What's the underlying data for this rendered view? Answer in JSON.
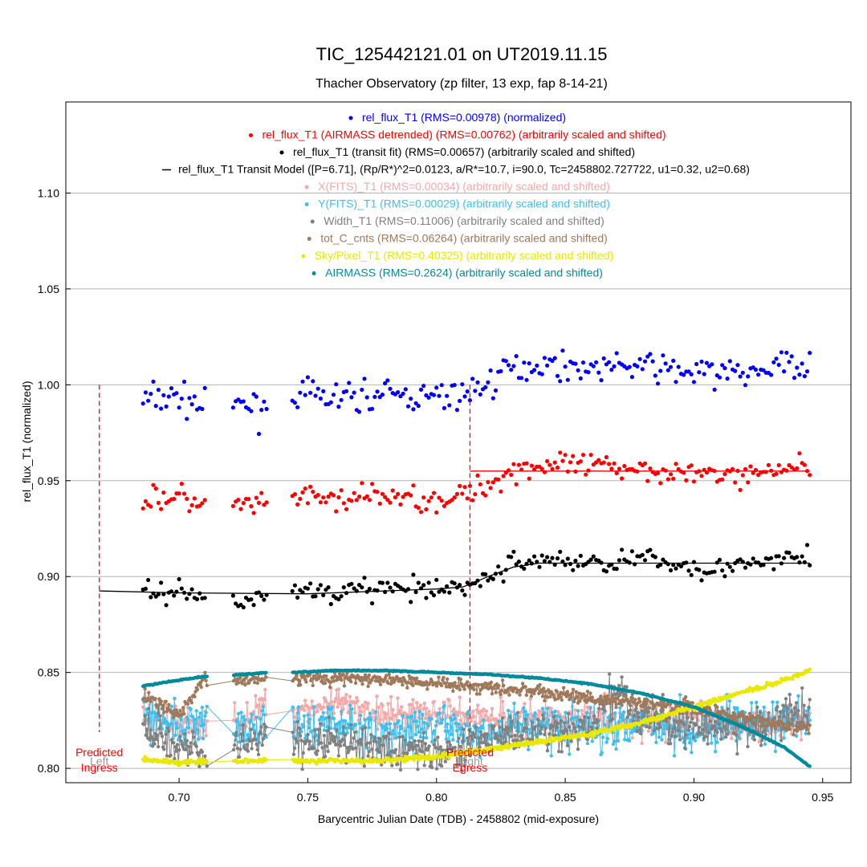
{
  "chart_data": {
    "type": "scatter",
    "title": "TIC_125442121.01 on UT2019.11.15",
    "subtitle": "Thacher Observatory (zp filter, 13 exp, fap 8-14-21)",
    "xlabel": "Barycentric Julian Date (TDB) - 2458802 (mid-exposure)",
    "ylabel": "rel_flux_T1 (normalized)",
    "xlim": [
      0.656,
      0.961
    ],
    "ylim": [
      0.7925,
      1.1475
    ],
    "xticks": [
      "0.70",
      "0.75",
      "0.80",
      "0.85",
      "0.90",
      "0.95"
    ],
    "yticks": [
      "0.80",
      "0.85",
      "0.90",
      "0.95",
      "1.00",
      "1.05",
      "1.10"
    ],
    "grid": "horizontal",
    "legend_position": "top-center",
    "x_gaps": [
      [
        0.711,
        0.721
      ],
      [
        0.734,
        0.744
      ]
    ],
    "legend": [
      {
        "text": "rel_flux_T1 (RMS=0.00978) (normalized)",
        "color": "#0000ff",
        "symbol": "dot"
      },
      {
        "text": "rel_flux_T1 (AIRMASS detrended) (RMS=0.00762) (arbitrarily scaled and shifted)",
        "color": "#ff0000",
        "symbol": "dot"
      },
      {
        "text": "rel_flux_T1 (transit fit) (RMS=0.00657) (arbitrarily scaled and shifted)",
        "color": "#000000",
        "symbol": "dot"
      },
      {
        "text": "rel_flux_T1 Transit Model ([P=6.71], (Rp/R*)^2=0.0123, a/R*=10.7, i=90.0, Tc=2458802.727722, u1=0.32, u2=0.68)",
        "color": "#000000",
        "symbol": "line"
      },
      {
        "text": "X(FITS)_T1 (RMS=0.00034) (arbitrarily scaled and shifted)",
        "color": "#f4a8a8",
        "symbol": "dot"
      },
      {
        "text": "Y(FITS)_T1 (RMS=0.00029) (arbitrarily scaled and shifted)",
        "color": "#3ec0ee",
        "symbol": "dot"
      },
      {
        "text": "Width_T1 (RMS=0.11006) (arbitrarily scaled and shifted)",
        "color": "#808080",
        "symbol": "dot"
      },
      {
        "text": "tot_C_cnts (RMS=0.06264) (arbitrarily scaled and shifted)",
        "color": "#a0785a",
        "symbol": "dot"
      },
      {
        "text": "Sky/Pixel_T1 (RMS=0.40325) (arbitrarily scaled and shifted)",
        "color": "#e8e800",
        "symbol": "dot"
      },
      {
        "text": "AIRMASS (RMS=0.2624) (arbitrarily scaled and shifted)",
        "color": "#008b9b",
        "symbol": "dot"
      }
    ],
    "series": [
      {
        "name": "rel_flux_T1 (RMS=0.00978) (normalized)",
        "color": "#0000ff",
        "kind": "points",
        "x": [
          0.686,
          0.7,
          0.71,
          0.726,
          0.734,
          0.745,
          0.76,
          0.78,
          0.8,
          0.813,
          0.82,
          0.83,
          0.84,
          0.86,
          0.88,
          0.9,
          0.92,
          0.935,
          0.945
        ],
        "y": [
          0.992,
          0.994,
          0.988,
          0.989,
          0.988,
          0.995,
          0.993,
          0.995,
          0.993,
          0.996,
          1.001,
          1.009,
          1.011,
          1.009,
          1.01,
          1.006,
          1.006,
          1.01,
          1.012
        ]
      },
      {
        "name": "rel_flux_T1 (AIRMASS detrended) (RMS=0.00762) (arbitrarily scaled and shifted)",
        "color": "#ff0000",
        "kind": "points",
        "x": [
          0.686,
          0.7,
          0.71,
          0.726,
          0.734,
          0.745,
          0.76,
          0.78,
          0.8,
          0.813,
          0.82,
          0.83,
          0.84,
          0.86,
          0.88,
          0.9,
          0.92,
          0.935,
          0.945
        ],
        "y": [
          0.94,
          0.942,
          0.936,
          0.937,
          0.936,
          0.942,
          0.94,
          0.942,
          0.94,
          0.943,
          0.948,
          0.956,
          0.958,
          0.957,
          0.957,
          0.953,
          0.953,
          0.957,
          0.959
        ]
      },
      {
        "name": "rel_flux_T1 Airmass model",
        "color": "#ff0000",
        "kind": "line",
        "x": [
          0.813,
          0.945
        ],
        "y": [
          0.955,
          0.955
        ]
      },
      {
        "name": "rel_flux_T1 (transit fit) (RMS=0.00657) (arbitrarily scaled and shifted)",
        "color": "#000000",
        "kind": "points",
        "x": [
          0.686,
          0.7,
          0.71,
          0.726,
          0.734,
          0.745,
          0.76,
          0.78,
          0.8,
          0.813,
          0.82,
          0.83,
          0.84,
          0.86,
          0.88,
          0.9,
          0.92,
          0.935,
          0.945
        ],
        "y": [
          0.891,
          0.893,
          0.888,
          0.889,
          0.888,
          0.894,
          0.892,
          0.894,
          0.892,
          0.896,
          0.899,
          0.907,
          0.909,
          0.907,
          0.909,
          0.905,
          0.905,
          0.909,
          0.911
        ]
      },
      {
        "name": "rel_flux_T1 Transit Model ([P=6.71], (Rp/R*)^2=0.0123, a/R*=10.7, i=90.0, Tc=2458802.727722, u1=0.32, u2=0.68)",
        "color": "#000000",
        "kind": "line",
        "x": [
          0.669,
          0.7,
          0.75,
          0.8,
          0.81,
          0.813,
          0.82,
          0.83,
          0.84,
          0.86,
          0.9,
          0.945
        ],
        "y": [
          0.8925,
          0.8915,
          0.891,
          0.8935,
          0.8945,
          0.896,
          0.9,
          0.905,
          0.907,
          0.907,
          0.907,
          0.907
        ]
      },
      {
        "name": "X(FITS)_T1 (RMS=0.00034) (arbitrarily scaled and shifted)",
        "color": "#f4a8a8",
        "kind": "points",
        "x": [
          0.686,
          0.7,
          0.71,
          0.726,
          0.734,
          0.745,
          0.76,
          0.78,
          0.8,
          0.82,
          0.84,
          0.86,
          0.88,
          0.9,
          0.92,
          0.945
        ],
        "y": [
          0.826,
          0.824,
          0.822,
          0.826,
          0.834,
          0.83,
          0.833,
          0.828,
          0.829,
          0.827,
          0.826,
          0.828,
          0.823,
          0.826,
          0.822,
          0.826
        ]
      },
      {
        "name": "Y(FITS)_T1 (RMS=0.00029) (arbitrarily scaled and shifted)",
        "color": "#3ec0ee",
        "kind": "points",
        "x": [
          0.686,
          0.7,
          0.71,
          0.726,
          0.734,
          0.745,
          0.76,
          0.78,
          0.8,
          0.82,
          0.84,
          0.86,
          0.88,
          0.9,
          0.92,
          0.945
        ],
        "y": [
          0.832,
          0.82,
          0.826,
          0.818,
          0.822,
          0.82,
          0.824,
          0.817,
          0.822,
          0.818,
          0.824,
          0.82,
          0.826,
          0.82,
          0.824,
          0.824
        ]
      },
      {
        "name": "Width_T1 (RMS=0.11006) (arbitrarily scaled and shifted)",
        "color": "#808080",
        "kind": "points",
        "x": [
          0.686,
          0.7,
          0.71,
          0.726,
          0.734,
          0.745,
          0.76,
          0.78,
          0.8,
          0.82,
          0.84,
          0.86,
          0.87,
          0.88,
          0.9,
          0.92,
          0.945
        ],
        "y": [
          0.822,
          0.812,
          0.81,
          0.812,
          0.818,
          0.812,
          0.814,
          0.81,
          0.808,
          0.816,
          0.818,
          0.82,
          0.842,
          0.826,
          0.822,
          0.82,
          0.83
        ]
      },
      {
        "name": "tot_C_cnts (RMS=0.06264) (arbitrarily scaled and shifted)",
        "color": "#a0785a",
        "kind": "points",
        "x": [
          0.686,
          0.7,
          0.71,
          0.726,
          0.734,
          0.745,
          0.76,
          0.78,
          0.8,
          0.82,
          0.84,
          0.86,
          0.88,
          0.9,
          0.92,
          0.945
        ],
        "y": [
          0.838,
          0.828,
          0.846,
          0.846,
          0.848,
          0.848,
          0.847,
          0.846,
          0.845,
          0.842,
          0.84,
          0.836,
          0.834,
          0.832,
          0.826,
          0.82
        ]
      },
      {
        "name": "Sky/Pixel_T1 (RMS=0.40325) (arbitrarily scaled and shifted)",
        "color": "#e8e800",
        "kind": "points",
        "x": [
          0.686,
          0.7,
          0.71,
          0.726,
          0.734,
          0.745,
          0.76,
          0.78,
          0.8,
          0.82,
          0.84,
          0.86,
          0.88,
          0.9,
          0.92,
          0.935,
          0.945
        ],
        "y": [
          0.805,
          0.803,
          0.804,
          0.804,
          0.804,
          0.804,
          0.804,
          0.804,
          0.806,
          0.81,
          0.814,
          0.818,
          0.824,
          0.832,
          0.84,
          0.846,
          0.851
        ]
      },
      {
        "name": "AIRMASS (RMS=0.2624) (arbitrarily scaled and shifted)",
        "color": "#008b9b",
        "kind": "points",
        "x": [
          0.686,
          0.7,
          0.71,
          0.726,
          0.734,
          0.745,
          0.76,
          0.78,
          0.8,
          0.82,
          0.84,
          0.86,
          0.88,
          0.9,
          0.92,
          0.935,
          0.945
        ],
        "y": [
          0.843,
          0.846,
          0.848,
          0.849,
          0.85,
          0.85,
          0.851,
          0.851,
          0.85,
          0.849,
          0.847,
          0.844,
          0.839,
          0.832,
          0.821,
          0.811,
          0.801
        ]
      }
    ],
    "markers": [
      {
        "x": 0.669,
        "label_top": "Predicted",
        "label_bottom": "Ingress",
        "sub_label": "Left",
        "color": "#ff0000",
        "y_top": 1.0
      },
      {
        "x": 0.813,
        "label_top": "Predicted",
        "label_bottom": "Egress",
        "sub_label": "Right",
        "color": "#ff0000",
        "y_top": 1.0
      }
    ]
  }
}
